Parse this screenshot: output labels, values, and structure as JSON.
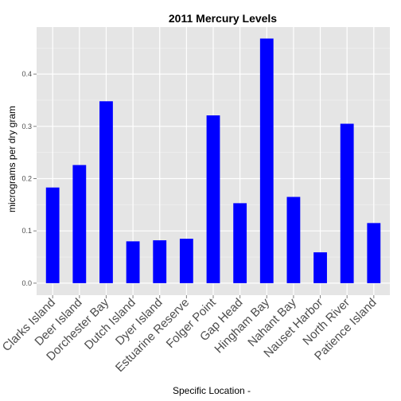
{
  "chart_data": {
    "type": "bar",
    "title": "2011 Mercury Levels",
    "xlabel": "Specific Location -",
    "ylabel": "micrograms per dry gram",
    "categories": [
      "Clarks Island",
      "Deer Island",
      "Dorchester Bay",
      "Dutch Island",
      "Dyer Island",
      "Estuarine Reserve",
      "Folger Point",
      "Gap Head",
      "Hingham Bay",
      "Nahant Bay",
      "Nauset Harbor",
      "North River",
      "Patience Island"
    ],
    "values": [
      0.183,
      0.226,
      0.348,
      0.08,
      0.082,
      0.085,
      0.321,
      0.153,
      0.468,
      0.165,
      0.059,
      0.305,
      0.115
    ],
    "yticks": [
      "0.0",
      "0.1",
      "0.2",
      "0.3",
      "0.4"
    ],
    "ylim": [
      -0.023,
      0.49
    ],
    "bar_color": "#0000ff",
    "panel_color": "#e5e5e5",
    "grid": true
  }
}
